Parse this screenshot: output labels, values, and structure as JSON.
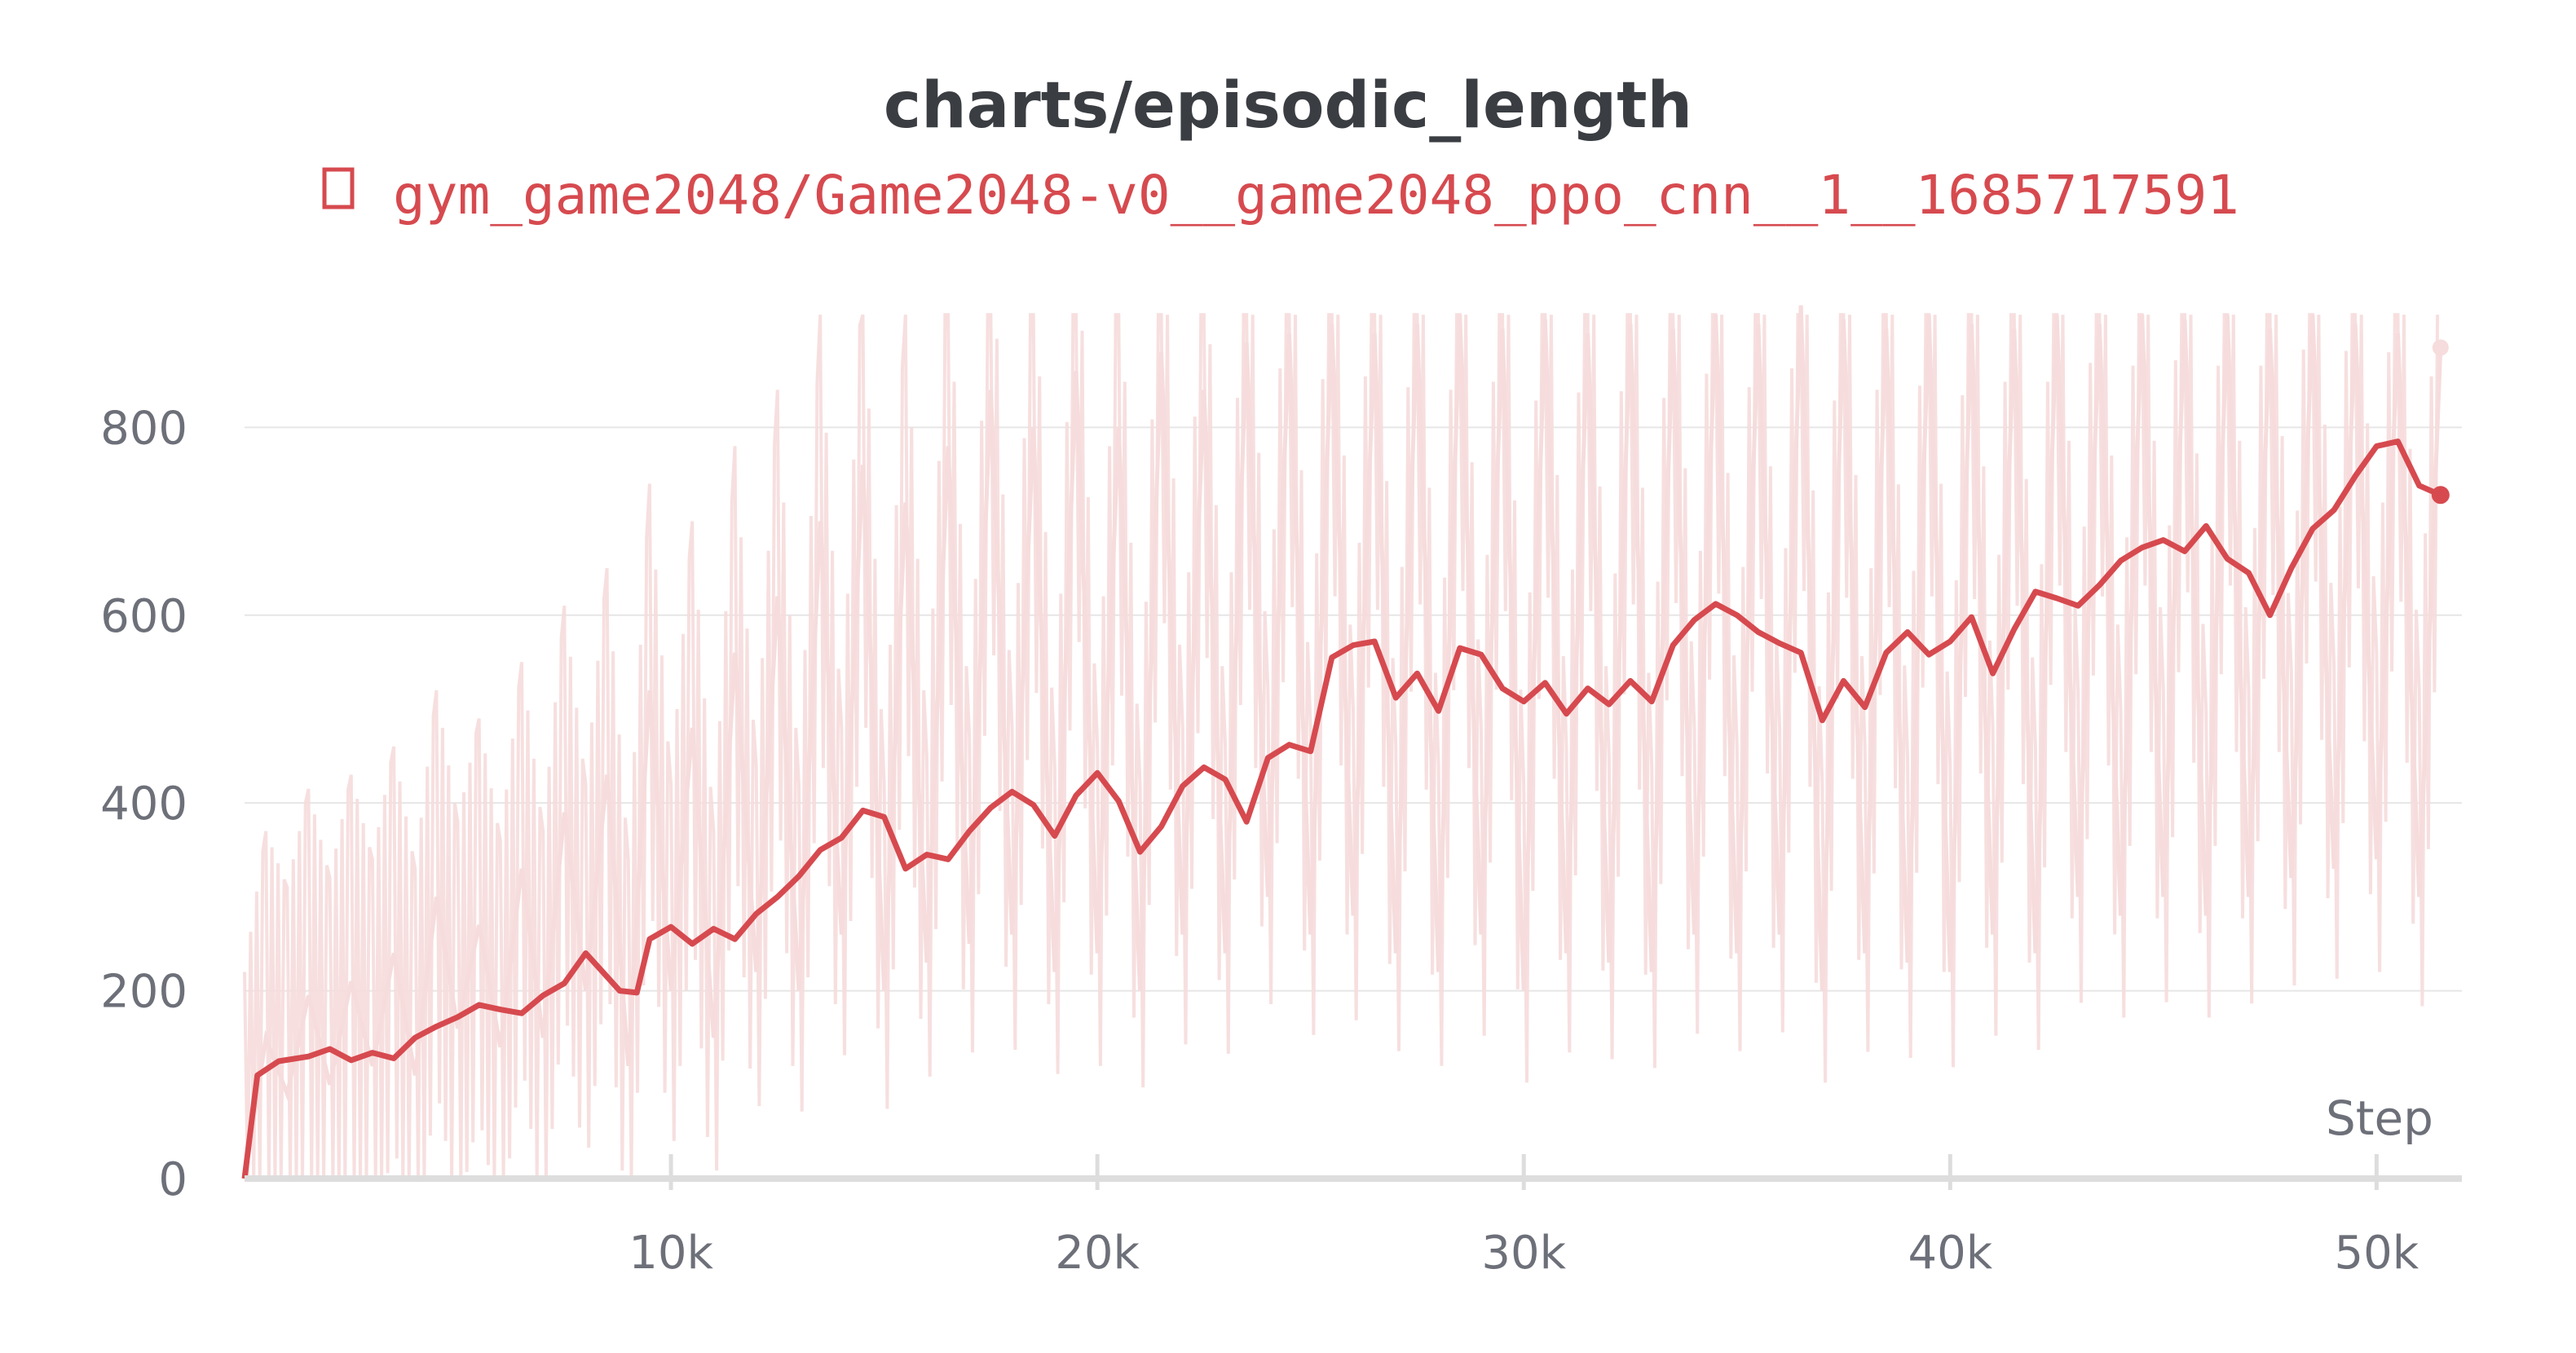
{
  "colors": {
    "series": "#d64a4f",
    "series_raw": "#f6dcdc",
    "title": "#3a3d42",
    "tick": "#6d7079",
    "grid": "#e6e6e6",
    "axis": "#dddddd"
  },
  "legend": {
    "icon": "square-outline-icon"
  },
  "chart_data": {
    "type": "line",
    "title": "charts/episodic_length",
    "xlabel": "Step",
    "ylabel": "",
    "xlim": [
      0,
      52000
    ],
    "ylim": [
      0,
      960
    ],
    "x_ticks": [
      10000,
      20000,
      30000,
      40000,
      50000
    ],
    "x_tick_labels": [
      "10k",
      "20k",
      "30k",
      "40k",
      "50k"
    ],
    "y_ticks": [
      0,
      200,
      400,
      600,
      800
    ],
    "y_tick_labels": [
      "0",
      "200",
      "400",
      "600",
      "800"
    ],
    "grid": true,
    "legend_position": "top-center",
    "series": [
      {
        "name": "gym_game2048/Game2048-v0__game2048_ppo_cnn__1__1685717591",
        "smoothed": [
          [
            0,
            0
          ],
          [
            300,
            110
          ],
          [
            800,
            125
          ],
          [
            1500,
            130
          ],
          [
            2000,
            138
          ],
          [
            2500,
            126
          ],
          [
            3000,
            134
          ],
          [
            3500,
            128
          ],
          [
            4000,
            150
          ],
          [
            4500,
            162
          ],
          [
            5000,
            172
          ],
          [
            5500,
            185
          ],
          [
            6000,
            180
          ],
          [
            6500,
            176
          ],
          [
            7000,
            195
          ],
          [
            7500,
            208
          ],
          [
            8000,
            240
          ],
          [
            8400,
            220
          ],
          [
            8800,
            200
          ],
          [
            9200,
            198
          ],
          [
            9500,
            255
          ],
          [
            10000,
            268
          ],
          [
            10500,
            250
          ],
          [
            11000,
            266
          ],
          [
            11500,
            255
          ],
          [
            12000,
            282
          ],
          [
            12500,
            300
          ],
          [
            13000,
            322
          ],
          [
            13500,
            350
          ],
          [
            14000,
            363
          ],
          [
            14500,
            392
          ],
          [
            15000,
            385
          ],
          [
            15500,
            330
          ],
          [
            16000,
            345
          ],
          [
            16500,
            340
          ],
          [
            17000,
            370
          ],
          [
            17500,
            395
          ],
          [
            18000,
            412
          ],
          [
            18500,
            398
          ],
          [
            19000,
            365
          ],
          [
            19500,
            408
          ],
          [
            20000,
            432
          ],
          [
            20500,
            402
          ],
          [
            21000,
            348
          ],
          [
            21500,
            375
          ],
          [
            22000,
            418
          ],
          [
            22500,
            438
          ],
          [
            23000,
            425
          ],
          [
            23500,
            380
          ],
          [
            24000,
            448
          ],
          [
            24500,
            462
          ],
          [
            25000,
            455
          ],
          [
            25500,
            555
          ],
          [
            26000,
            568
          ],
          [
            26500,
            572
          ],
          [
            27000,
            512
          ],
          [
            27500,
            538
          ],
          [
            28000,
            498
          ],
          [
            28500,
            565
          ],
          [
            29000,
            558
          ],
          [
            29500,
            522
          ],
          [
            30000,
            508
          ],
          [
            30500,
            528
          ],
          [
            31000,
            495
          ],
          [
            31500,
            522
          ],
          [
            32000,
            505
          ],
          [
            32500,
            530
          ],
          [
            33000,
            508
          ],
          [
            33500,
            568
          ],
          [
            34000,
            595
          ],
          [
            34500,
            612
          ],
          [
            35000,
            600
          ],
          [
            35500,
            582
          ],
          [
            36000,
            570
          ],
          [
            36500,
            560
          ],
          [
            37000,
            488
          ],
          [
            37500,
            530
          ],
          [
            38000,
            502
          ],
          [
            38500,
            560
          ],
          [
            39000,
            582
          ],
          [
            39500,
            558
          ],
          [
            40000,
            572
          ],
          [
            40500,
            598
          ],
          [
            41000,
            538
          ],
          [
            41500,
            585
          ],
          [
            42000,
            625
          ],
          [
            42500,
            618
          ],
          [
            43000,
            610
          ],
          [
            43500,
            632
          ],
          [
            44000,
            658
          ],
          [
            44500,
            672
          ],
          [
            45000,
            680
          ],
          [
            45500,
            668
          ],
          [
            46000,
            695
          ],
          [
            46500,
            660
          ],
          [
            47000,
            645
          ],
          [
            47500,
            600
          ],
          [
            48000,
            650
          ],
          [
            48500,
            692
          ],
          [
            49000,
            712
          ],
          [
            49500,
            748
          ],
          [
            50000,
            780
          ],
          [
            50500,
            785
          ],
          [
            51000,
            738
          ],
          [
            51500,
            728
          ]
        ],
        "raw_sample": [
          [
            0,
            0
          ],
          [
            500,
            150
          ],
          [
            1000,
            90
          ],
          [
            1500,
            195
          ],
          [
            2000,
            100
          ],
          [
            2500,
            210
          ],
          [
            3000,
            120
          ],
          [
            3500,
            240
          ],
          [
            4000,
            110
          ],
          [
            4500,
            300
          ],
          [
            5000,
            160
          ],
          [
            5500,
            270
          ],
          [
            6000,
            140
          ],
          [
            6500,
            330
          ],
          [
            7000,
            150
          ],
          [
            7500,
            390
          ],
          [
            8000,
            200
          ],
          [
            8500,
            430
          ],
          [
            9000,
            120
          ],
          [
            9500,
            520
          ],
          [
            10000,
            200
          ],
          [
            10500,
            480
          ],
          [
            11000,
            150
          ],
          [
            11500,
            560
          ],
          [
            12000,
            220
          ],
          [
            12500,
            620
          ],
          [
            13000,
            200
          ],
          [
            13500,
            700
          ],
          [
            14000,
            260
          ],
          [
            14500,
            760
          ],
          [
            15000,
            200
          ],
          [
            15500,
            720
          ],
          [
            16000,
            230
          ],
          [
            16500,
            780
          ],
          [
            17000,
            250
          ],
          [
            17500,
            840
          ],
          [
            18000,
            260
          ],
          [
            18500,
            800
          ],
          [
            19000,
            220
          ],
          [
            19500,
            860
          ],
          [
            20000,
            240
          ],
          [
            20500,
            800
          ],
          [
            21000,
            200
          ],
          [
            21500,
            880
          ],
          [
            22000,
            260
          ],
          [
            22500,
            840
          ],
          [
            23000,
            240
          ],
          [
            23500,
            890
          ],
          [
            24000,
            300
          ],
          [
            24500,
            900
          ],
          [
            25000,
            260
          ],
          [
            25500,
            910
          ],
          [
            26000,
            280
          ],
          [
            26500,
            900
          ],
          [
            27000,
            240
          ],
          [
            27500,
            910
          ],
          [
            28000,
            220
          ],
          [
            28500,
            920
          ],
          [
            29000,
            260
          ],
          [
            29500,
            905
          ],
          [
            30000,
            200
          ],
          [
            30500,
            915
          ],
          [
            31000,
            240
          ],
          [
            31500,
            900
          ],
          [
            32000,
            230
          ],
          [
            32500,
            910
          ],
          [
            33000,
            220
          ],
          [
            33500,
            905
          ],
          [
            34000,
            260
          ],
          [
            34500,
            920
          ],
          [
            35000,
            240
          ],
          [
            35500,
            910
          ],
          [
            36000,
            260
          ],
          [
            36500,
            930
          ],
          [
            37000,
            200
          ],
          [
            37500,
            915
          ],
          [
            38000,
            240
          ],
          [
            38500,
            905
          ],
          [
            39000,
            230
          ],
          [
            39500,
            920
          ],
          [
            40000,
            220
          ],
          [
            40500,
            910
          ],
          [
            41000,
            260
          ],
          [
            41500,
            905
          ],
          [
            42000,
            240
          ],
          [
            42500,
            920
          ],
          [
            43000,
            300
          ],
          [
            43500,
            910
          ],
          [
            44000,
            280
          ],
          [
            44500,
            920
          ],
          [
            45000,
            300
          ],
          [
            45500,
            915
          ],
          [
            46000,
            280
          ],
          [
            46500,
            920
          ],
          [
            47000,
            300
          ],
          [
            47500,
            905
          ],
          [
            48000,
            320
          ],
          [
            48500,
            920
          ],
          [
            49000,
            330
          ],
          [
            49500,
            910
          ],
          [
            50000,
            340
          ],
          [
            50500,
            900
          ],
          [
            51000,
            300
          ],
          [
            51500,
            885
          ]
        ]
      }
    ]
  }
}
